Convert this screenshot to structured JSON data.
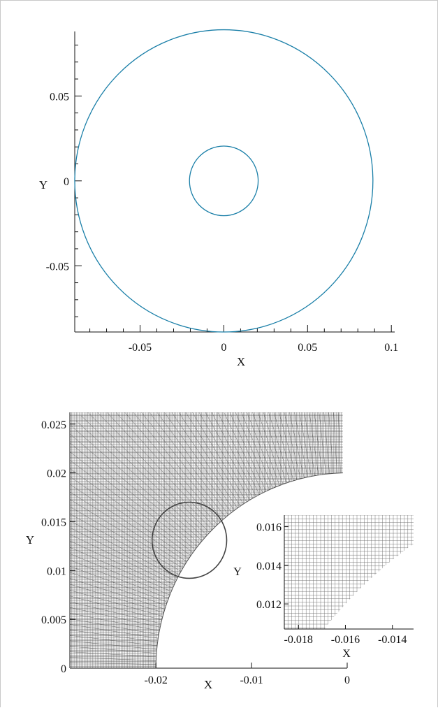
{
  "chart_data": [
    {
      "type": "line",
      "title": "",
      "xlabel": "X",
      "ylabel": "Y",
      "xlim": [
        -0.089,
        0.102
      ],
      "ylim": [
        -0.089,
        0.088
      ],
      "x_ticks": [
        -0.05,
        0,
        0.05,
        0.1
      ],
      "x_tick_labels": [
        "-0.05",
        "0",
        "0.05",
        "0.1"
      ],
      "y_ticks": [
        -0.05,
        0,
        0.05
      ],
      "y_tick_labels": [
        "-0.05",
        "0",
        "0.05"
      ],
      "x_minor_step": 0.01,
      "y_minor_step": 0.01,
      "line_color": "#1a7fa8",
      "series": [
        {
          "shape": "circle",
          "cx": 0,
          "cy": 0,
          "r": 0.089
        },
        {
          "shape": "circle",
          "cx": 0,
          "cy": 0,
          "r": 0.0205
        }
      ]
    },
    {
      "type": "mesh",
      "title": "",
      "xlabel": "X",
      "ylabel": "Y",
      "xlim": [
        -0.029,
        0
      ],
      "ylim": [
        0,
        0.0262
      ],
      "x_ticks": [
        -0.02,
        -0.01,
        0
      ],
      "x_tick_labels": [
        "-0.02",
        "-0.01",
        "0"
      ],
      "y_ticks": [
        0,
        0.005,
        0.01,
        0.015,
        0.02,
        0.025
      ],
      "y_tick_labels": [
        "0",
        "0.005",
        "0.01",
        "0.015",
        "0.02",
        "0.025"
      ],
      "mesh_domain": {
        "x": [
          -0.029,
          -0.00045
        ],
        "y": [
          0,
          0.0262
        ]
      },
      "cylinder": {
        "cx": 0,
        "cy": 0,
        "r": 0.02
      },
      "mesh_color": "#4a4a4a",
      "highlight_circle": {
        "cx": -0.0165,
        "cy": 0.0131,
        "r": 0.0039
      },
      "inset": {
        "xlabel": "X",
        "ylabel": "Y",
        "xlim": [
          -0.0186,
          -0.0131
        ],
        "ylim": [
          0.0107,
          0.0166
        ],
        "x_ticks": [
          -0.018,
          -0.016,
          -0.014
        ],
        "x_tick_labels": [
          "-0.018",
          "-0.016",
          "-0.014"
        ],
        "y_ticks": [
          0.012,
          0.014,
          0.016
        ],
        "y_tick_labels": [
          "0.012",
          "0.014",
          "0.016"
        ]
      }
    }
  ]
}
